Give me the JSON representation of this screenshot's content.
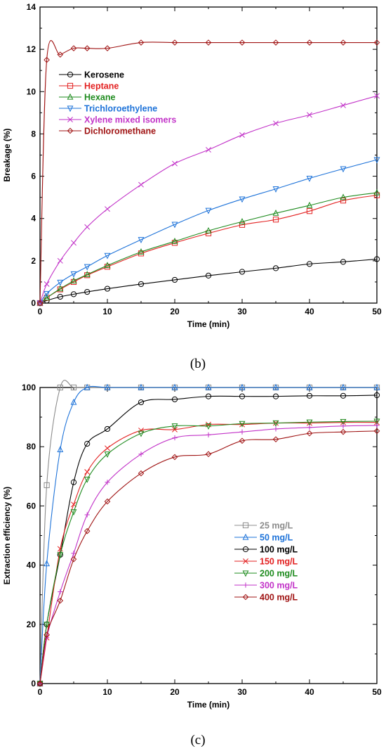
{
  "chart_data": [
    {
      "type": "line",
      "panel_label": "(b)",
      "xlabel": "Time (min)",
      "ylabel": "Breakage (%)",
      "xlim": [
        0,
        50
      ],
      "ylim": [
        0,
        14
      ],
      "xticks": [
        0,
        10,
        20,
        30,
        40,
        50
      ],
      "yticks": [
        0,
        2,
        4,
        6,
        8,
        10,
        12,
        14
      ],
      "legend_position": "upper-left",
      "series": [
        {
          "name": "Kerosene",
          "color": "#000000",
          "marker": "circle",
          "x": [
            0,
            1,
            3,
            5,
            7,
            10,
            15,
            20,
            25,
            30,
            35,
            40,
            45,
            50
          ],
          "y": [
            0,
            0.12,
            0.3,
            0.42,
            0.53,
            0.68,
            0.9,
            1.1,
            1.3,
            1.48,
            1.65,
            1.85,
            1.95,
            2.08
          ]
        },
        {
          "name": "Heptane",
          "color": "#e32222",
          "marker": "square",
          "x": [
            0,
            1,
            3,
            5,
            7,
            10,
            15,
            20,
            25,
            30,
            35,
            40,
            45,
            50
          ],
          "y": [
            0,
            0.25,
            0.65,
            1.0,
            1.32,
            1.72,
            2.35,
            2.85,
            3.3,
            3.7,
            3.95,
            4.35,
            4.85,
            5.1
          ]
        },
        {
          "name": "Hexane",
          "color": "#1e8b1e",
          "marker": "triangle-up",
          "x": [
            0,
            1,
            3,
            5,
            7,
            10,
            15,
            20,
            25,
            30,
            35,
            40,
            45,
            50
          ],
          "y": [
            0,
            0.25,
            0.68,
            1.05,
            1.35,
            1.78,
            2.42,
            2.92,
            3.42,
            3.85,
            4.25,
            4.62,
            5.0,
            5.22
          ]
        },
        {
          "name": "Trichloroethylene",
          "color": "#1e73d9",
          "marker": "triangle-down",
          "x": [
            0,
            1,
            3,
            5,
            7,
            10,
            15,
            20,
            25,
            30,
            35,
            40,
            45,
            50
          ],
          "y": [
            0,
            0.45,
            0.98,
            1.38,
            1.72,
            2.25,
            3.0,
            3.72,
            4.38,
            4.92,
            5.4,
            5.9,
            6.35,
            6.78
          ]
        },
        {
          "name": "Xylene mixed isomers",
          "color": "#c233c8",
          "marker": "x",
          "x": [
            0,
            1,
            3,
            5,
            7,
            10,
            15,
            20,
            25,
            30,
            35,
            40,
            45,
            50
          ],
          "y": [
            0,
            0.9,
            2.0,
            2.85,
            3.6,
            4.45,
            5.6,
            6.6,
            7.25,
            7.95,
            8.5,
            8.9,
            9.35,
            9.8
          ]
        },
        {
          "name": "Dichloromethane",
          "color": "#a01414",
          "marker": "diamond",
          "x": [
            0,
            1,
            3,
            5,
            7,
            10,
            15,
            20,
            25,
            30,
            35,
            40,
            45,
            50
          ],
          "y": [
            0,
            11.5,
            11.75,
            12.05,
            12.05,
            12.05,
            12.32,
            12.32,
            12.32,
            12.32,
            12.32,
            12.32,
            12.32,
            12.32
          ]
        }
      ]
    },
    {
      "type": "line",
      "panel_label": "(c)",
      "xlabel": "Time (min)",
      "ylabel": "Extraction efficiency (%)",
      "xlim": [
        0,
        50
      ],
      "ylim": [
        0,
        100
      ],
      "xticks": [
        0,
        10,
        20,
        30,
        40,
        50
      ],
      "yticks": [
        0,
        20,
        40,
        60,
        80,
        100
      ],
      "legend_position": "center-right",
      "series": [
        {
          "name": "25  mg/L",
          "color": "#8c8c8c",
          "marker": "square",
          "x": [
            0,
            1,
            3,
            5,
            7,
            10,
            15,
            20,
            25,
            30,
            35,
            40,
            45,
            50
          ],
          "y": [
            0,
            67,
            100,
            100,
            100,
            100,
            100,
            100,
            100,
            100,
            100,
            100,
            100,
            100
          ]
        },
        {
          "name": "50  mg/L",
          "color": "#1e73d9",
          "marker": "triangle-up",
          "x": [
            0,
            1,
            3,
            5,
            7,
            10,
            15,
            20,
            25,
            30,
            35,
            40,
            45,
            50
          ],
          "y": [
            0,
            40.5,
            79,
            95,
            100,
            100,
            100,
            100,
            100,
            100,
            100,
            100,
            100,
            100
          ]
        },
        {
          "name": "100  mg/L",
          "color": "#000000",
          "marker": "circle",
          "x": [
            0,
            1,
            3,
            5,
            7,
            10,
            15,
            20,
            25,
            30,
            35,
            40,
            45,
            50
          ],
          "y": [
            0,
            20,
            43.5,
            68,
            81,
            86,
            95,
            96,
            97,
            97,
            97,
            97.2,
            97.2,
            97.4
          ]
        },
        {
          "name": "150  mg/L",
          "color": "#e32222",
          "marker": "x",
          "x": [
            0,
            1,
            3,
            5,
            7,
            10,
            15,
            20,
            25,
            30,
            35,
            40,
            45,
            50
          ],
          "y": [
            0,
            15.5,
            45.5,
            60.5,
            71.5,
            79.5,
            85.5,
            85.8,
            87.5,
            87.5,
            88,
            88,
            88.2,
            88.2
          ]
        },
        {
          "name": "200  mg/L",
          "color": "#1e8b1e",
          "marker": "triangle-down",
          "x": [
            0,
            1,
            3,
            5,
            7,
            10,
            15,
            20,
            25,
            30,
            35,
            40,
            45,
            50
          ],
          "y": [
            0,
            20,
            43.5,
            58,
            69,
            77.5,
            84.5,
            87,
            87,
            87.8,
            88,
            88.3,
            88.5,
            88.6
          ]
        },
        {
          "name": "300  mg/L",
          "color": "#c233c8",
          "marker": "plus",
          "x": [
            0,
            1,
            3,
            5,
            7,
            10,
            15,
            20,
            25,
            30,
            35,
            40,
            45,
            50
          ],
          "y": [
            0,
            15.5,
            31,
            44,
            57,
            68,
            77.5,
            83,
            84,
            85,
            86,
            86.5,
            87,
            87.2
          ]
        },
        {
          "name": "400  mg/L",
          "color": "#a01414",
          "marker": "diamond",
          "x": [
            0,
            1,
            3,
            5,
            7,
            10,
            15,
            20,
            25,
            30,
            35,
            40,
            45,
            50
          ],
          "y": [
            0,
            16.5,
            28,
            42,
            51.5,
            61.5,
            71,
            76.5,
            77.5,
            82,
            82.5,
            84.5,
            85,
            85.3
          ]
        }
      ]
    }
  ]
}
